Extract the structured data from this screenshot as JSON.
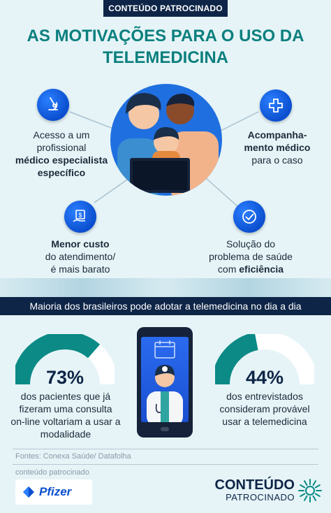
{
  "header": {
    "sponsored_tag": "CONTEÚDO PATROCINADO",
    "title_line1": "AS MOTIVAÇÕES PARA O USO DA",
    "title_line2": "TELEMEDICINA"
  },
  "motivations": {
    "specialist": {
      "line1": "Acesso a um",
      "line2": "profissional",
      "line3_bold": "médico especialista",
      "line4_bold": "específico",
      "icon": "microscope-icon"
    },
    "followup": {
      "line1_bold": "Acompanha-",
      "line2_bold": "mento médico",
      "line3": "para o caso",
      "icon": "medical-cross-icon"
    },
    "cost": {
      "line1_bold": "Menor custo",
      "line2": "do atendimento/",
      "line3": "é mais barato",
      "icon": "money-hand-icon"
    },
    "efficiency": {
      "line1": "Solução do",
      "line2": "problema de saúde",
      "line3_prefix": "com ",
      "line3_bold": "eficiência",
      "icon": "check-icon"
    }
  },
  "banner": {
    "text": "Maioria dos brasileiros pode adotar a telemedicina no dia a dia"
  },
  "stats": {
    "left": {
      "percent": "73%",
      "value": 73,
      "line1": "dos pacientes que já",
      "line2": "fizeram uma consulta",
      "line3": "on-line voltariam a usar a",
      "line4": "modalidade"
    },
    "right": {
      "percent": "44%",
      "value": 44,
      "line1": "dos entrevistados",
      "line2": "consideram provável",
      "line3": "usar a telemedicina"
    }
  },
  "footer": {
    "sources": "Fontes: Conexa Saúde/ Datafolha",
    "sponsored_small": "conteúdo patrocinado",
    "sponsor_logo": "Pfizer",
    "brand_line1": "CONTEÚDO",
    "brand_line2": "PATROCINADO"
  },
  "colors": {
    "teal": "#0b8a86",
    "navy": "#0e2547",
    "blue": "#0b4fcf",
    "bg": "#e6f4f7"
  }
}
